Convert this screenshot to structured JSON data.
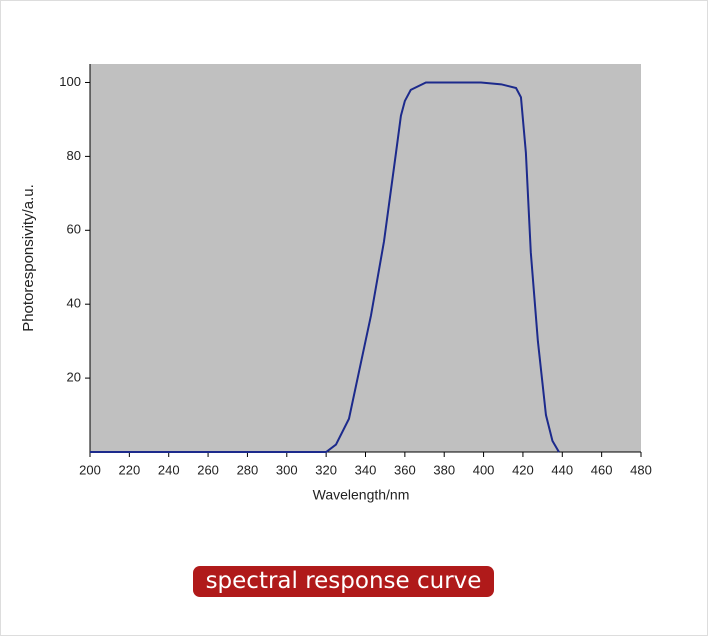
{
  "chart_data": {
    "type": "line",
    "caption": "spectral response curve",
    "x_label": "Wavelength/nm",
    "y_label": "Photoresponsivity/a.u.",
    "x": [
      200,
      320,
      325,
      331.6,
      342.8,
      349.4,
      355.5,
      358,
      360,
      363,
      370.7,
      398.7,
      409,
      416.5,
      419,
      421.5,
      424,
      427.6,
      431.7,
      435,
      438.3
    ],
    "series": [
      {
        "color": "#1c2a8c",
        "values": [
          0,
          0,
          2,
          9,
          37,
          57,
          81,
          91,
          95,
          98,
          100,
          100,
          99.5,
          98.5,
          96,
          81,
          54,
          30,
          10,
          3,
          0
        ]
      }
    ],
    "xlim": [
      200,
      480
    ],
    "xticks": [
      200,
      220,
      240,
      260,
      280,
      300,
      320,
      340,
      360,
      380,
      400,
      420,
      440,
      460,
      480
    ],
    "ylim": [
      0,
      105
    ],
    "yticks": [
      20,
      40,
      60,
      80,
      100
    ],
    "background": "#c0c0c0"
  }
}
